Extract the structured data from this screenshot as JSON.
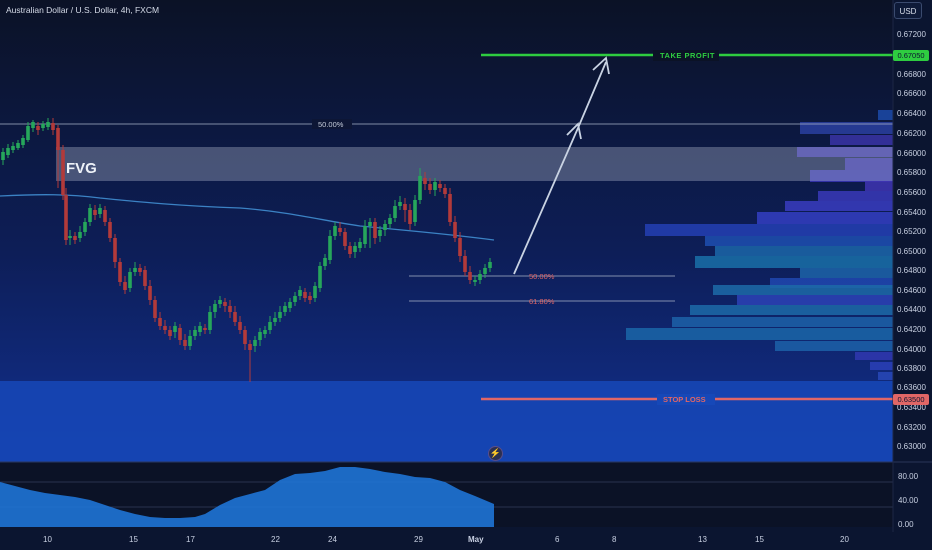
{
  "header": {
    "symbol_title": "Australian Dollar / U.S. Dollar, 4h, FXCM",
    "currency_label": "USD"
  },
  "price_axis": [
    "0.67200",
    "0.67000",
    "0.66800",
    "0.66600",
    "0.66400",
    "0.66200",
    "0.66000",
    "0.65800",
    "0.65600",
    "0.65400",
    "0.65200",
    "0.65000",
    "0.64800",
    "0.64600",
    "0.64400",
    "0.64200",
    "0.64000",
    "0.63800",
    "0.63600",
    "0.63400",
    "0.63200",
    "0.63000"
  ],
  "time_axis": [
    "10",
    "15",
    "17",
    "22",
    "24",
    "29",
    "May",
    "6",
    "8",
    "13",
    "15",
    "20"
  ],
  "oscillator_axis": [
    "80.00",
    "40.00",
    "0.00"
  ],
  "annotations": {
    "fvg": "FVG",
    "take_profit": "TAKE PROFIT",
    "stop_loss": "STOP LOSS",
    "fib_top": "50.00%",
    "fib_mid": "50.00%",
    "fib_low": "61.80%",
    "take_profit_price": "0.67050",
    "stop_loss_price": "0.63500"
  },
  "colors": {
    "background": "#0b1530",
    "up_candle": "#26a65b",
    "down_candle": "#b23a3a",
    "take_profit": "#2ecc40",
    "stop_loss": "#e06666",
    "moving_average": "#3b82c4",
    "fvg_zone": "#c8d0e0",
    "stop_zone": "#1648b8",
    "oscillator_fill": "#1e74d6"
  },
  "icons": {
    "lightning": "lightning-icon"
  }
}
